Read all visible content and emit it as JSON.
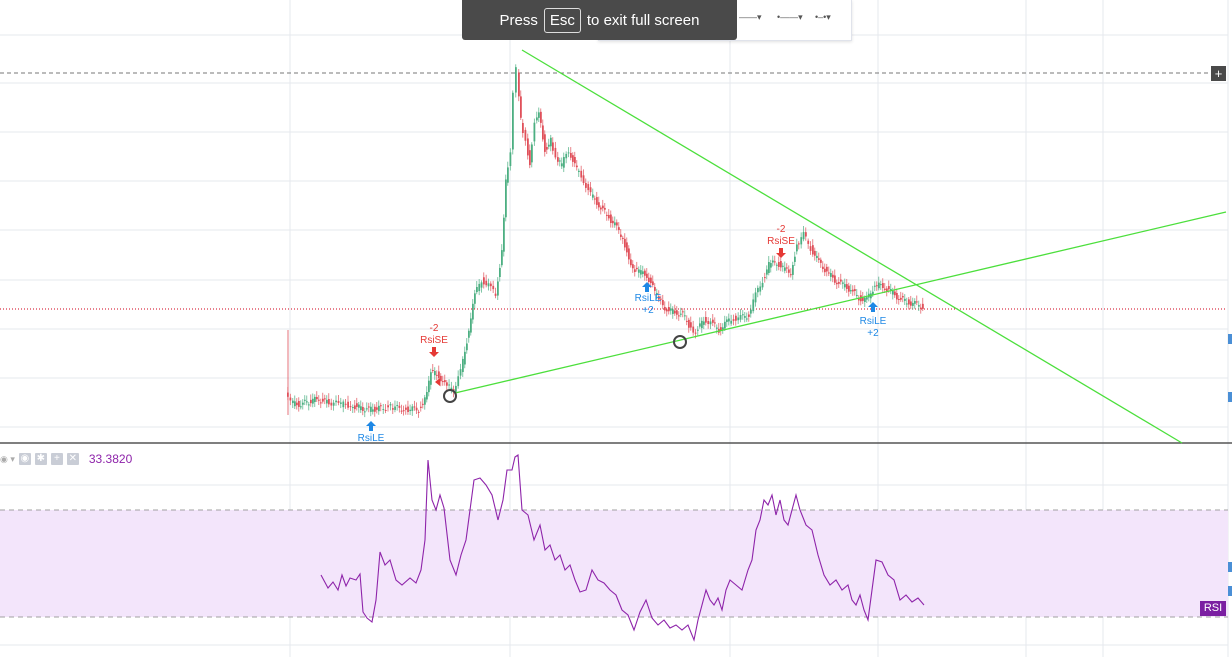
{
  "fullscreen_toast": {
    "press": "Press",
    "key": "Esc",
    "suffix": "to exit full screen"
  },
  "indicator_bar": {
    "value": "33.3820"
  },
  "rsi_tag": "RSI",
  "plus_label": "+",
  "annotations": {
    "rsile_1": "RsiLE",
    "rsise_1_qty": "-2",
    "rsise_1": "RsiSE",
    "rsile_2": "RsiLE",
    "rsile_2_qty": "+2",
    "rsise_2_qty": "-2",
    "rsise_2": "RsiSE",
    "rsile_3": "RsiLE",
    "rsile_3_qty": "+2"
  },
  "colors": {
    "up_candle": "#4caf82",
    "down_candle": "#e0505a",
    "trendline": "#4cdf3c",
    "rsi_line": "#8e24aa",
    "rsi_band": "#f3e5fb",
    "entry_long": "#1e88e5",
    "entry_short": "#e53935",
    "price_line": "#d0021b"
  },
  "icons": [
    "eye-icon",
    "gear-icon",
    "plus-icon",
    "close-icon",
    "arrow-up-icon",
    "arrow-down-icon",
    "circle-marker-icon"
  ]
}
